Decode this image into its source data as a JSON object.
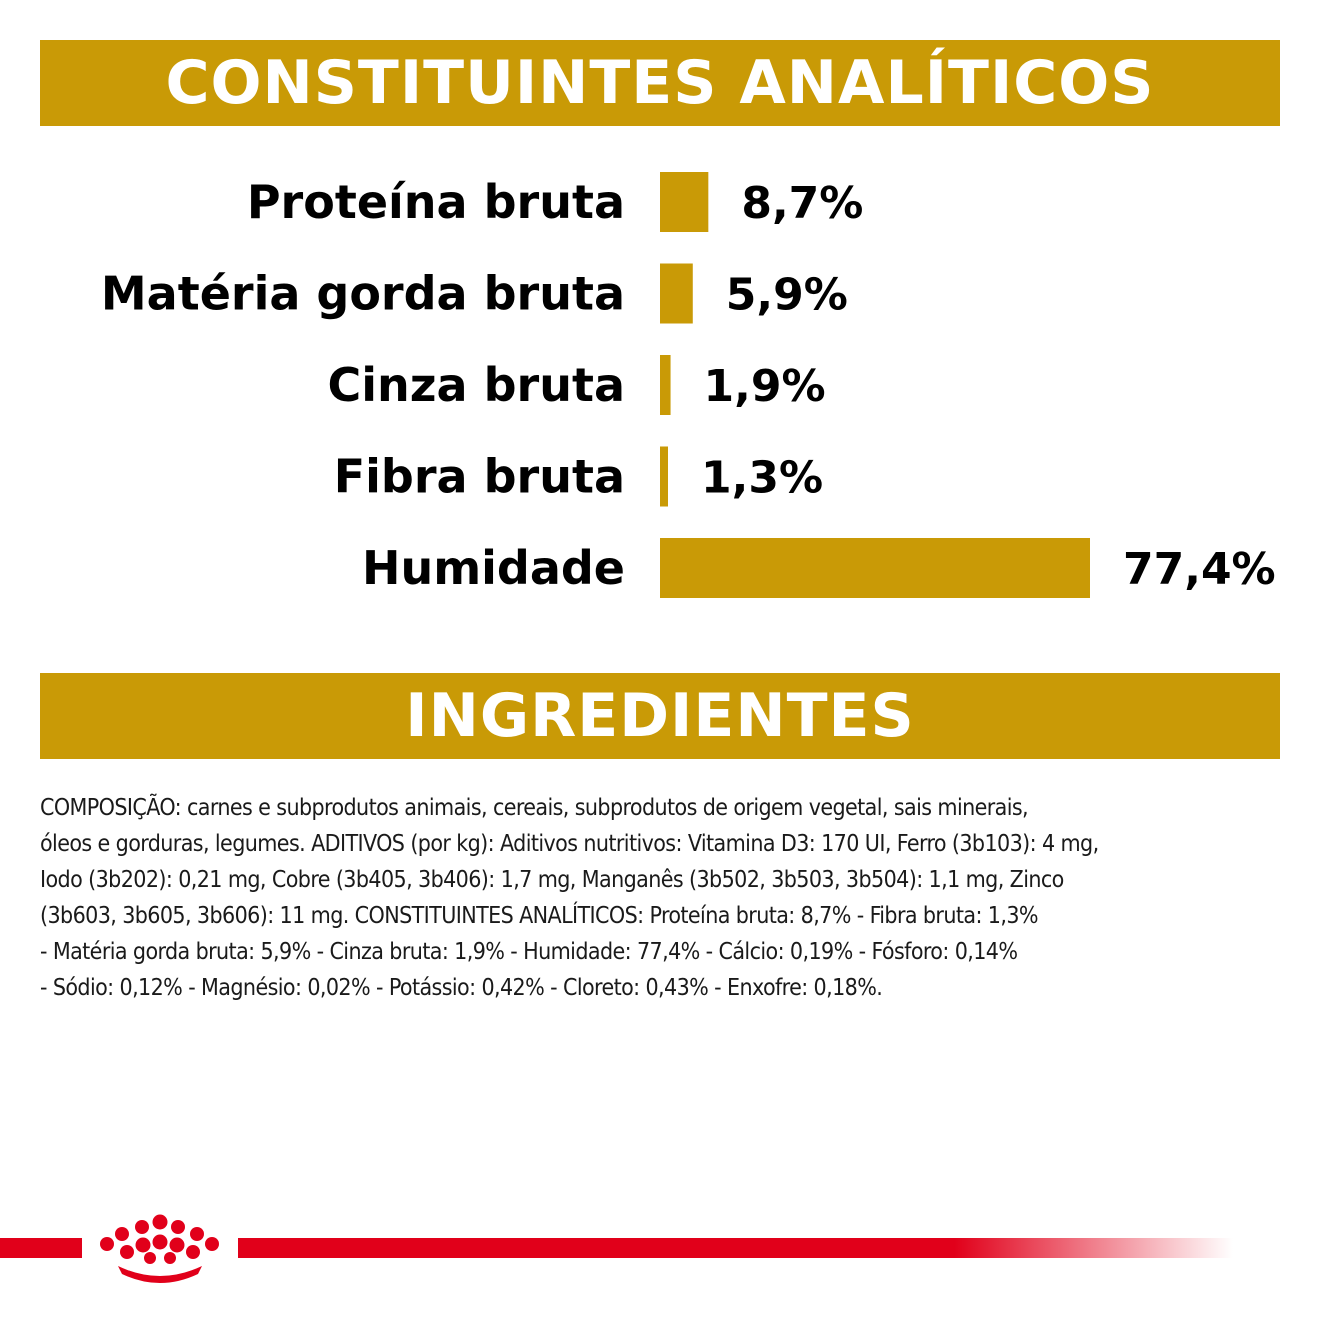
{
  "colors": {
    "gold": "#C99A06",
    "red": "#E1001A"
  },
  "sections": {
    "analytic_title": "CONSTITUINTES ANALÍTICOS",
    "ingredients_title": "INGREDIENTES"
  },
  "chart_data": {
    "type": "bar",
    "orientation": "horizontal",
    "categories": [
      "Proteína bruta",
      "Matéria gorda bruta",
      "Cinza bruta",
      "Fibra bruta",
      "Humidade"
    ],
    "values": [
      8.7,
      5.9,
      1.9,
      1.3,
      77.4
    ],
    "value_labels": [
      "8,7%",
      "5,9%",
      "1,9%",
      "1,3%",
      "77,4%"
    ],
    "unit": "%",
    "grid": false,
    "legend": "none"
  },
  "ingredients": {
    "lines": [
      "COMPOSIÇÃO: carnes e subprodutos animais, cereais, subprodutos de origem vegetal, sais minerais,",
      "óleos e gorduras, legumes. ADITIVOS (por kg): Aditivos nutritivos: Vitamina D3: 170 UI, Ferro (3b103): 4 mg,",
      "Iodo (3b202): 0,21 mg, Cobre (3b405, 3b406): 1,7 mg, Manganês (3b502, 3b503, 3b504): 1,1 mg, Zinco",
      "(3b603, 3b605, 3b606): 11 mg. CONSTITUINTES ANALÍTICOS: Proteína bruta: 8,7% - Fibra bruta: 1,3%",
      "- Matéria gorda bruta: 5,9% - Cinza bruta: 1,9% - Humidade: 77,4% - Cálcio: 0,19% - Fósforo: 0,14%",
      "- Sódio: 0,12% - Magnésio: 0,02% - Potássio: 0,42% - Cloreto: 0,43% - Enxofre: 0,18%."
    ]
  },
  "footer": {
    "logo_icon": "crown-icon"
  }
}
